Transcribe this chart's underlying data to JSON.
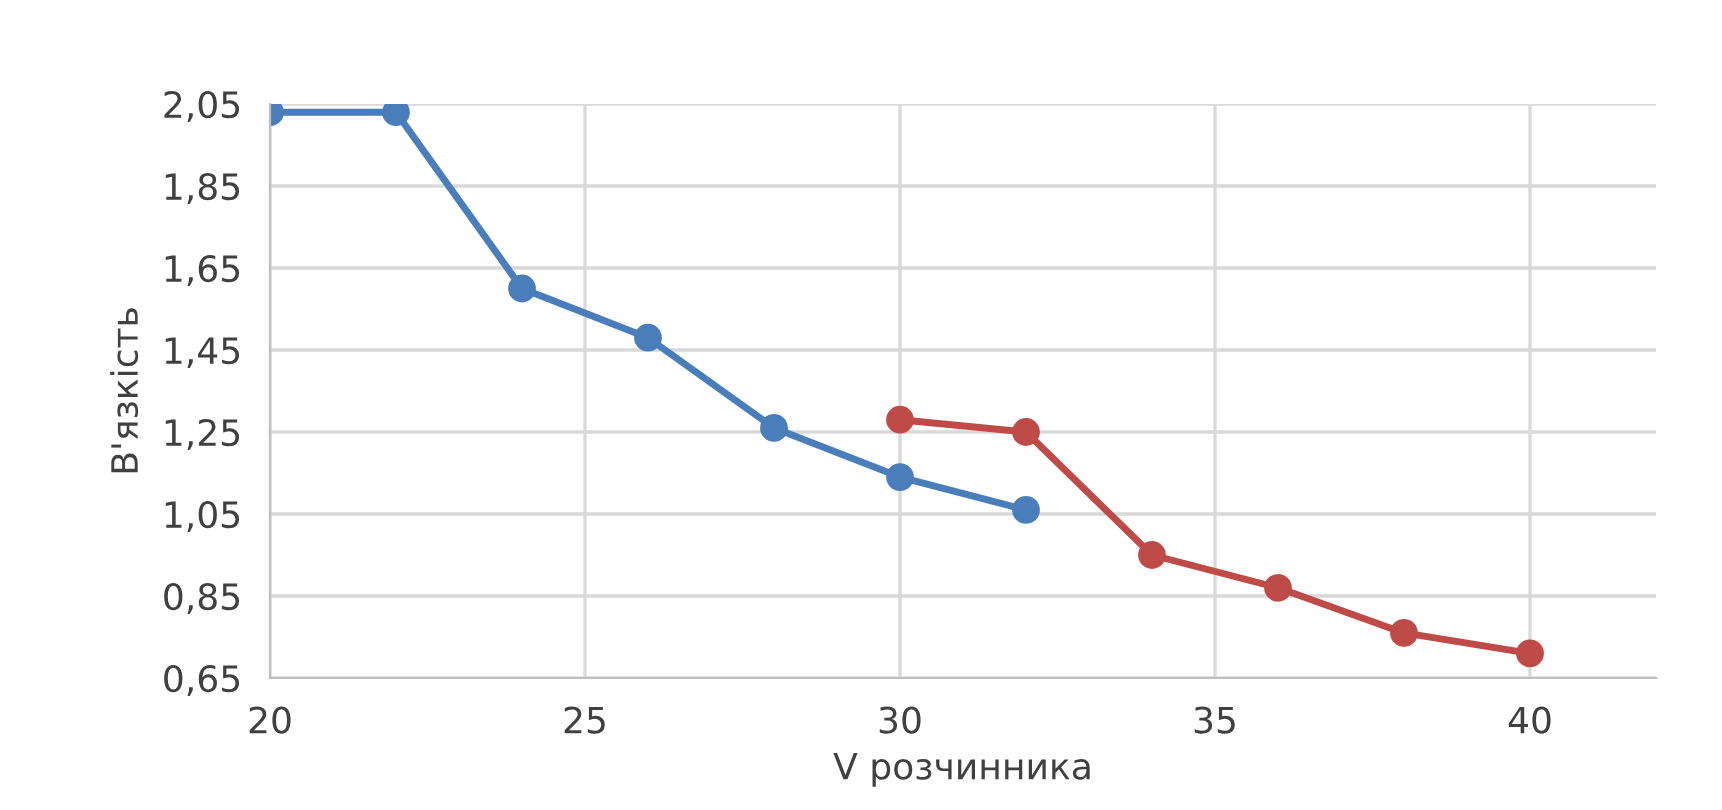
{
  "chart_data": {
    "type": "line",
    "xlabel": "V розчинника",
    "ylabel": "В'язкість",
    "xlim": [
      20,
      42
    ],
    "xticks": [
      20,
      25,
      30,
      35,
      40
    ],
    "ylim": [
      0.65,
      2.05
    ],
    "yticks": [
      {
        "value": 0.65,
        "label": "0,65"
      },
      {
        "value": 0.85,
        "label": "0,85"
      },
      {
        "value": 1.05,
        "label": "1,05"
      },
      {
        "value": 1.25,
        "label": "1,25"
      },
      {
        "value": 1.45,
        "label": "1,45"
      },
      {
        "value": 1.65,
        "label": "1,65"
      },
      {
        "value": 1.85,
        "label": "1,85"
      },
      {
        "value": 2.05,
        "label": "2,05"
      }
    ],
    "grid": true,
    "marker": "circle",
    "line_style": "solid",
    "series": [
      {
        "color": "#4a7ebb",
        "x": [
          20,
          22,
          24,
          26,
          28,
          30,
          32
        ],
        "values": [
          2.03,
          2.03,
          1.6,
          1.48,
          1.26,
          1.14,
          1.06
        ]
      },
      {
        "color": "#be4b48",
        "x": [
          30,
          32,
          34,
          36,
          38,
          40
        ],
        "values": [
          1.28,
          1.25,
          0.95,
          0.87,
          0.76,
          0.71
        ]
      }
    ]
  }
}
